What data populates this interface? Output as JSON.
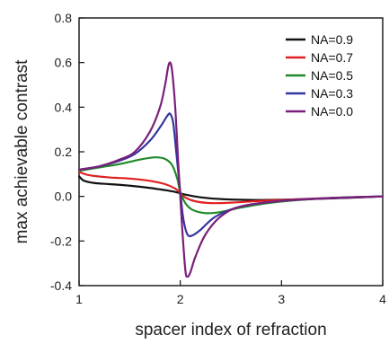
{
  "chart_data": {
    "type": "line",
    "title": "",
    "xlabel": "spacer index of refraction",
    "ylabel": "max achievable contrast",
    "xlim": [
      1,
      4
    ],
    "ylim": [
      -0.4,
      0.8
    ],
    "xticks": [
      "1",
      "2",
      "3",
      "4"
    ],
    "yticks": [
      "0.8",
      "0.6",
      "0.4",
      "0.2",
      "0.0",
      "-0.2",
      "-0.4"
    ],
    "grid": false,
    "legend_position": "top-right",
    "series": [
      {
        "name": "NA=0.9",
        "color": "#111111",
        "points": [
          [
            1.0,
            0.09
          ],
          [
            1.05,
            0.07
          ],
          [
            1.15,
            0.06
          ],
          [
            1.3,
            0.055
          ],
          [
            1.5,
            0.048
          ],
          [
            1.7,
            0.038
          ],
          [
            1.85,
            0.028
          ],
          [
            1.95,
            0.02
          ],
          [
            2.0,
            0.014
          ],
          [
            2.05,
            0.008
          ],
          [
            2.2,
            -0.004
          ],
          [
            2.4,
            -0.012
          ],
          [
            2.7,
            -0.016
          ],
          [
            3.0,
            -0.015
          ],
          [
            3.5,
            -0.009
          ],
          [
            3.8,
            -0.004
          ],
          [
            4.0,
            0.0
          ]
        ]
      },
      {
        "name": "NA=0.7",
        "color": "#e02020",
        "points": [
          [
            1.0,
            0.11
          ],
          [
            1.1,
            0.095
          ],
          [
            1.3,
            0.085
          ],
          [
            1.5,
            0.08
          ],
          [
            1.7,
            0.07
          ],
          [
            1.85,
            0.055
          ],
          [
            1.95,
            0.035
          ],
          [
            2.0,
            0.015
          ],
          [
            2.05,
            -0.005
          ],
          [
            2.15,
            -0.022
          ],
          [
            2.3,
            -0.03
          ],
          [
            2.5,
            -0.028
          ],
          [
            2.8,
            -0.02
          ],
          [
            3.2,
            -0.012
          ],
          [
            3.6,
            -0.005
          ],
          [
            4.0,
            0.0
          ]
        ]
      },
      {
        "name": "NA=0.5",
        "color": "#1f8a2a",
        "points": [
          [
            1.0,
            0.115
          ],
          [
            1.2,
            0.13
          ],
          [
            1.4,
            0.145
          ],
          [
            1.6,
            0.165
          ],
          [
            1.75,
            0.175
          ],
          [
            1.85,
            0.168
          ],
          [
            1.92,
            0.14
          ],
          [
            1.97,
            0.08
          ],
          [
            2.0,
            0.02
          ],
          [
            2.05,
            -0.03
          ],
          [
            2.12,
            -0.06
          ],
          [
            2.25,
            -0.075
          ],
          [
            2.4,
            -0.07
          ],
          [
            2.6,
            -0.05
          ],
          [
            2.9,
            -0.028
          ],
          [
            3.3,
            -0.012
          ],
          [
            3.7,
            -0.004
          ],
          [
            4.0,
            0.0
          ]
        ]
      },
      {
        "name": "NA=0.3",
        "color": "#3535a0",
        "points": [
          [
            1.0,
            0.12
          ],
          [
            1.2,
            0.135
          ],
          [
            1.4,
            0.16
          ],
          [
            1.55,
            0.19
          ],
          [
            1.7,
            0.25
          ],
          [
            1.8,
            0.31
          ],
          [
            1.87,
            0.36
          ],
          [
            1.9,
            0.37
          ],
          [
            1.93,
            0.33
          ],
          [
            1.96,
            0.2
          ],
          [
            2.0,
            0.02
          ],
          [
            2.03,
            -0.1
          ],
          [
            2.07,
            -0.17
          ],
          [
            2.12,
            -0.175
          ],
          [
            2.2,
            -0.15
          ],
          [
            2.35,
            -0.09
          ],
          [
            2.6,
            -0.045
          ],
          [
            3.0,
            -0.02
          ],
          [
            3.5,
            -0.007
          ],
          [
            4.0,
            0.0
          ]
        ]
      },
      {
        "name": "NA=0.0",
        "color": "#7a1f7a",
        "points": [
          [
            1.0,
            0.12
          ],
          [
            1.2,
            0.135
          ],
          [
            1.4,
            0.165
          ],
          [
            1.55,
            0.2
          ],
          [
            1.7,
            0.29
          ],
          [
            1.8,
            0.4
          ],
          [
            1.85,
            0.5
          ],
          [
            1.88,
            0.58
          ],
          [
            1.9,
            0.6
          ],
          [
            1.92,
            0.56
          ],
          [
            1.95,
            0.4
          ],
          [
            1.98,
            0.15
          ],
          [
            2.0,
            0.0
          ],
          [
            2.02,
            -0.15
          ],
          [
            2.05,
            -0.33
          ],
          [
            2.07,
            -0.36
          ],
          [
            2.1,
            -0.34
          ],
          [
            2.15,
            -0.27
          ],
          [
            2.25,
            -0.17
          ],
          [
            2.4,
            -0.09
          ],
          [
            2.6,
            -0.045
          ],
          [
            3.0,
            -0.02
          ],
          [
            3.5,
            -0.008
          ],
          [
            4.0,
            0.0
          ]
        ]
      }
    ]
  }
}
